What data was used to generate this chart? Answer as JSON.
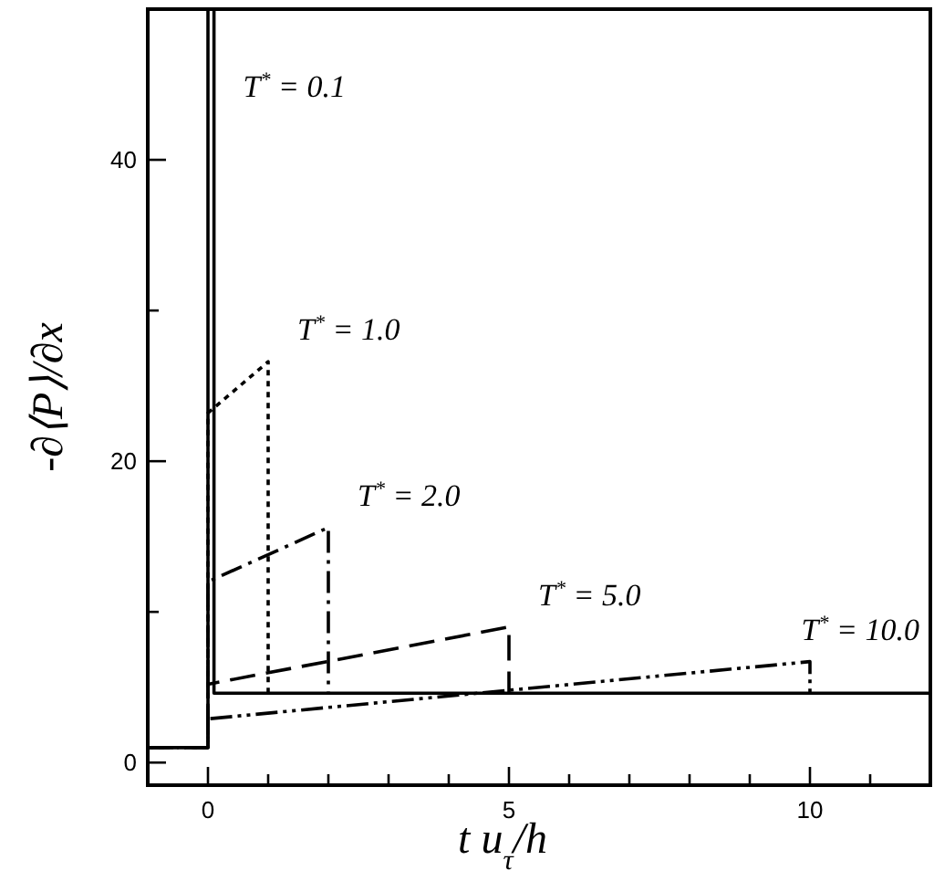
{
  "chart_data": {
    "type": "line",
    "xlabel": "t u$_{τ}$/h",
    "ylabel": "-∂⟨P⟩/∂x",
    "xlim": [
      -1,
      12
    ],
    "ylim": [
      -1.5,
      50
    ],
    "xticks": [
      {
        "value": -1,
        "label": null
      },
      0,
      {
        "value": 1,
        "label": null
      },
      {
        "value": 2,
        "label": null
      },
      {
        "value": 3,
        "label": null
      },
      {
        "value": 4,
        "label": null
      },
      5,
      {
        "value": 6,
        "label": null
      },
      {
        "value": 7,
        "label": null
      },
      {
        "value": 8,
        "label": null
      },
      {
        "value": 9,
        "label": null
      },
      10,
      {
        "value": 11,
        "label": null
      }
    ],
    "yticks": [
      0,
      {
        "value": 10,
        "label": null
      },
      20,
      {
        "value": 30,
        "label": null
      },
      40,
      {
        "value": 50,
        "label": null
      }
    ],
    "grid": false,
    "marker": "none",
    "series": [
      {
        "color": "#000000",
        "line_style": "solid",
        "x": [
          -1,
          0,
          0,
          0.1,
          0.1,
          12
        ],
        "values": [
          1,
          1,
          50,
          50,
          4.6,
          4.6
        ]
      },
      {
        "color": "#000000",
        "line_style": "dotted",
        "x": [
          -1,
          0,
          0,
          1,
          1
        ],
        "values": [
          1,
          1,
          23.2,
          26.6,
          4.6
        ]
      },
      {
        "color": "#000000",
        "line_style": "dashdot",
        "x": [
          -1,
          0,
          0,
          2,
          2
        ],
        "values": [
          1,
          1,
          12,
          15.6,
          4.6
        ]
      },
      {
        "color": "#000000",
        "line_style": "dashed",
        "x": [
          -1,
          0,
          0,
          5,
          5
        ],
        "values": [
          1,
          1,
          5.2,
          9,
          4.6
        ]
      },
      {
        "color": "#000000",
        "line_style": "dashdotdot",
        "x": [
          -1,
          0,
          0,
          10,
          10
        ],
        "values": [
          1,
          1,
          2.9,
          6.7,
          4.6
        ]
      }
    ],
    "annotations": [
      "T$^{*}$ = 0.1",
      "T$^{*}$ = 1.0",
      "T$^{*}$ = 2.0",
      "T$^{*}$ = 5.0",
      "T$^{*}$ = 10.0"
    ]
  }
}
